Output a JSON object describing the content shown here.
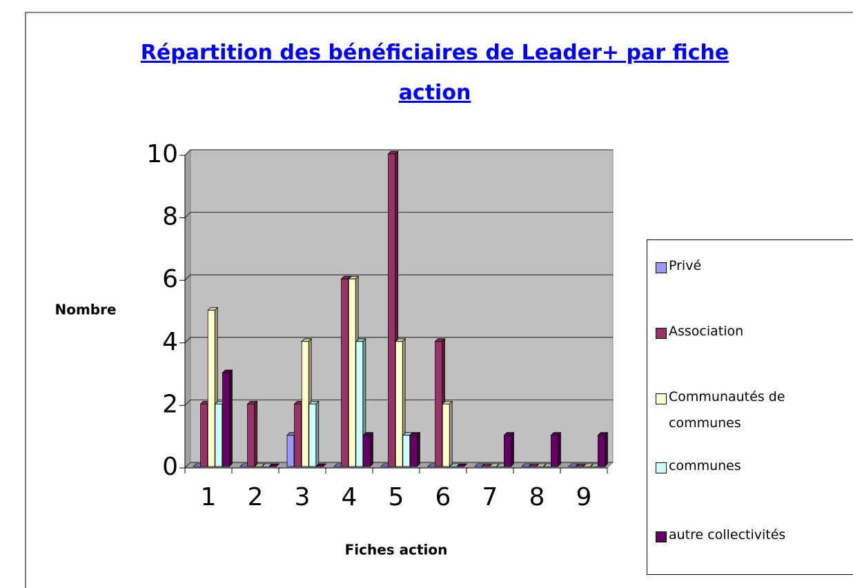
{
  "chart_data": {
    "type": "bar",
    "title": "Répartition des bénéficiaires de Leader+ par fiche action",
    "x_label": "Fiches action",
    "y_label": "Nombre",
    "categories": [
      "1",
      "2",
      "3",
      "4",
      "5",
      "6",
      "7",
      "8",
      "9"
    ],
    "series": [
      {
        "name": "Privé",
        "color": "#9999ff",
        "values": [
          0,
          0,
          1,
          0,
          0,
          0,
          0,
          0,
          0
        ]
      },
      {
        "name": "Association",
        "color": "#993366",
        "values": [
          2,
          2,
          2,
          6,
          10,
          4,
          0,
          0,
          0
        ]
      },
      {
        "name": "Communautés de communes",
        "color": "#ffffcc",
        "values": [
          5,
          0,
          4,
          6,
          4,
          2,
          0,
          0,
          0
        ]
      },
      {
        "name": "communes",
        "color": "#ccffff",
        "values": [
          2,
          0,
          2,
          4,
          1,
          0,
          0,
          0,
          0
        ]
      },
      {
        "name": "autre collectivités",
        "color": "#660066",
        "values": [
          3,
          0,
          0,
          1,
          1,
          0,
          1,
          1,
          1
        ]
      }
    ],
    "ylim": [
      0,
      10
    ],
    "yticks": [
      0,
      2,
      4,
      6,
      8,
      10
    ],
    "grid": true,
    "legend": "right"
  }
}
